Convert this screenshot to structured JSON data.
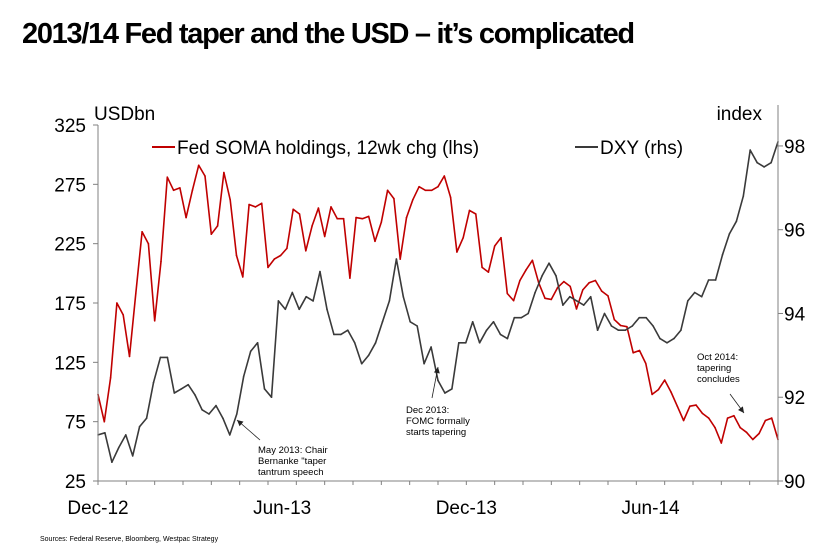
{
  "header": {
    "title": "2013/14 Fed taper and the USD – it’s complicated"
  },
  "footer": {
    "source": "Sources: Federal Reserve, Bloomberg, Westpac Strategy"
  },
  "colors": {
    "soma": "#c00000",
    "dxy": "#3a3a3a",
    "axis": "#808080"
  },
  "chart_data": {
    "type": "line",
    "title": "2013/14 Fed taper and the USD – it’s complicated",
    "left_axis_unit": "USDbn",
    "right_axis_unit": "index",
    "ylim_left": [
      25,
      325
    ],
    "ylim_right": [
      90,
      98.5
    ],
    "x_range_weeks": [
      0,
      96
    ],
    "left_ticks": [
      25,
      75,
      125,
      175,
      225,
      275,
      325
    ],
    "right_ticks": [
      90,
      92,
      94,
      96,
      98
    ],
    "x_ticks": [
      {
        "label": "Dec-12",
        "week": 0
      },
      {
        "label": "Jun-13",
        "week": 26
      },
      {
        "label": "Dec-13",
        "week": 52
      },
      {
        "label": "Jun-14",
        "week": 78
      }
    ],
    "legend_position": "top",
    "series": [
      {
        "name": "Fed SOMA holdings, 12wk chg (lhs)",
        "axis": "left",
        "values": [
          98,
          75,
          112,
          175,
          165,
          130,
          183,
          235,
          225,
          160,
          210,
          281,
          270,
          272,
          247,
          270,
          291,
          282,
          233,
          240,
          285,
          262,
          215,
          197,
          258,
          256,
          259,
          205,
          212,
          215,
          221,
          254,
          250,
          219,
          240,
          255,
          231,
          256,
          246,
          246,
          196,
          247,
          246,
          248,
          227,
          243,
          270,
          263,
          212,
          247,
          262,
          273,
          270,
          270,
          273,
          282,
          264,
          218,
          230,
          253,
          250,
          205,
          201,
          223,
          230,
          183,
          177,
          194,
          203,
          211,
          192,
          179,
          178,
          188,
          193,
          189,
          170,
          186,
          192,
          194,
          185,
          181,
          161,
          156,
          155,
          133,
          135,
          124,
          98,
          102,
          110,
          100,
          88,
          76,
          88,
          89,
          82,
          78,
          70,
          57,
          78,
          80,
          70,
          66,
          60,
          65,
          76,
          78,
          60
        ]
      },
      {
        "name": "DXY (rhs)",
        "axis": "right",
        "values": [
          91.1,
          91.15,
          90.45,
          90.8,
          91.1,
          90.6,
          91.3,
          91.5,
          92.35,
          92.95,
          92.95,
          92.1,
          92.2,
          92.3,
          92.05,
          91.7,
          91.6,
          91.8,
          91.5,
          91.1,
          91.6,
          92.5,
          93.1,
          93.3,
          92.2,
          92.0,
          94.3,
          94.1,
          94.5,
          94.1,
          94.4,
          94.3,
          95.0,
          94.1,
          93.5,
          93.5,
          93.6,
          93.3,
          92.8,
          93.0,
          93.3,
          93.8,
          94.3,
          95.3,
          94.4,
          93.8,
          93.7,
          92.8,
          93.2,
          92.4,
          92.1,
          92.2,
          93.3,
          93.3,
          93.8,
          93.3,
          93.6,
          93.8,
          93.5,
          93.4,
          93.9,
          93.9,
          94.0,
          94.5,
          94.9,
          95.2,
          94.9,
          94.2,
          94.4,
          94.3,
          94.2,
          94.4,
          93.6,
          94.0,
          93.7,
          93.6,
          93.6,
          93.7,
          93.9,
          93.9,
          93.7,
          93.4,
          93.3,
          93.4,
          93.6,
          94.3,
          94.5,
          94.4,
          94.8,
          94.8,
          95.4,
          95.9,
          96.2,
          96.8,
          97.9,
          97.6,
          97.5,
          97.6,
          98.1
        ]
      }
    ],
    "annotations": [
      {
        "id": "may13",
        "text": [
          "May 2013: Chair",
          "Bernanke \"taper",
          "tantrum speech"
        ]
      },
      {
        "id": "dec13",
        "text": [
          "Dec 2013:",
          "FOMC formally",
          "starts tapering"
        ]
      },
      {
        "id": "oct14",
        "text": [
          "Oct 2014:",
          "tapering",
          "concludes"
        ]
      }
    ]
  }
}
